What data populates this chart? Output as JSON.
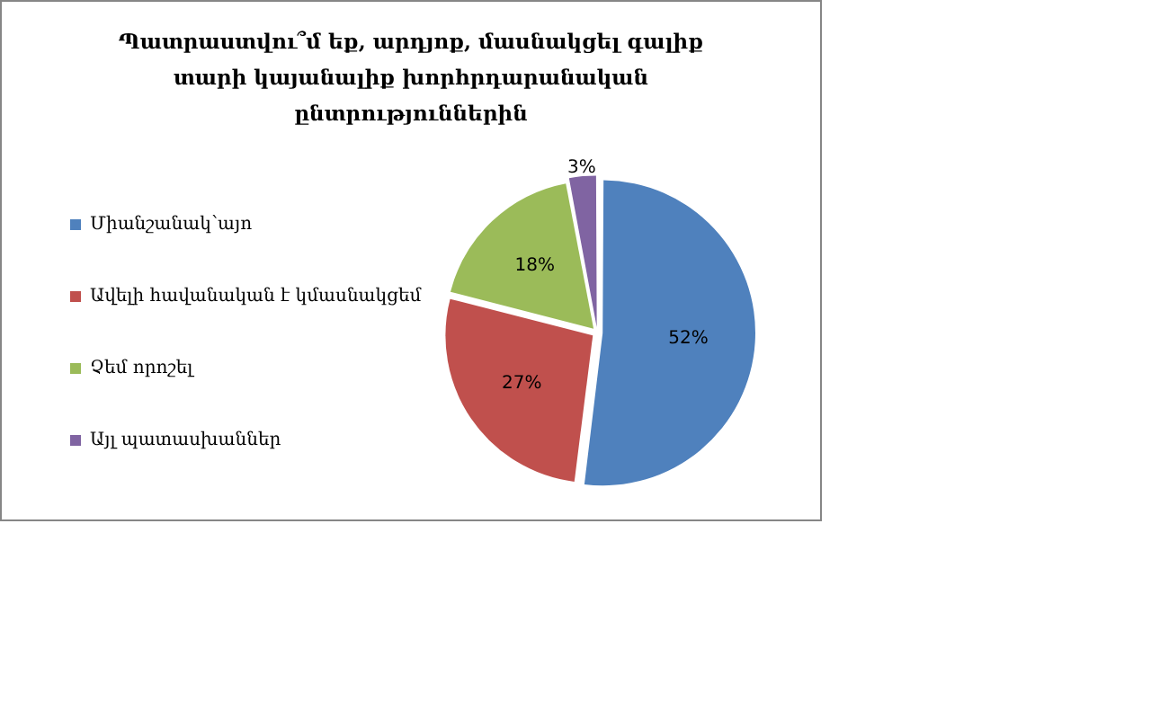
{
  "chart_data": {
    "type": "pie",
    "title": "Պատրաստվու՞մ եք, արդյոք, մասնակցել գալիք տարի կայանալիք խորհրդարանական ընտրություններին",
    "categories": [
      "Միանշանակ՝այո",
      "Ավելի հավանական է կմասնակցեմ",
      "Չեմ որոշել",
      "Այլ պատասխաններ"
    ],
    "values": [
      52,
      27,
      18,
      3
    ],
    "colors": [
      "#4f81bd",
      "#c0504d",
      "#9bbb59",
      "#8064a2"
    ],
    "value_labels": [
      "52%",
      "27%",
      "18%",
      "3%"
    ],
    "legend": "left"
  }
}
